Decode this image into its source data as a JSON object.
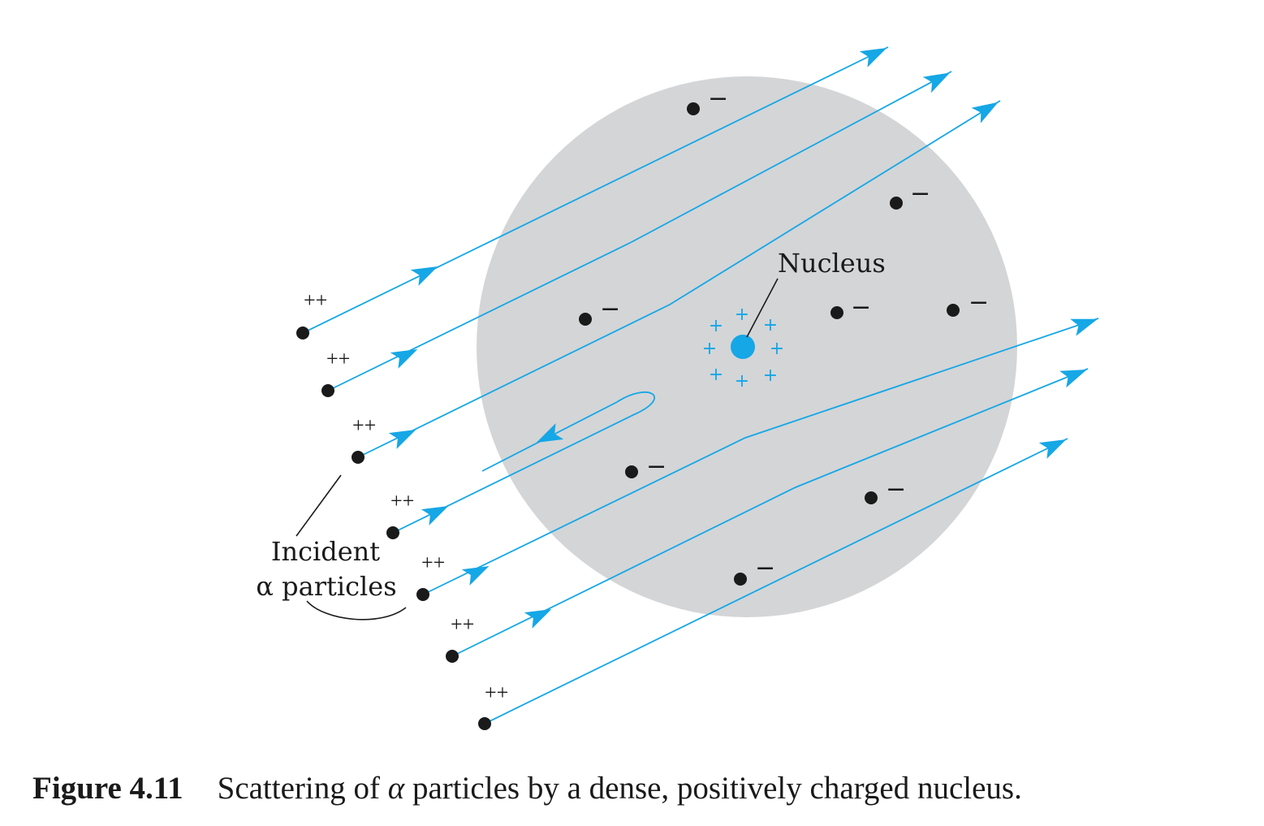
{
  "labels": {
    "nucleus": "Nucleus",
    "incident_line1": "Incident",
    "incident_line2": "α particles",
    "alpha_charge": "++",
    "electron_charge": "−",
    "nucleus_charge": "+"
  },
  "caption": {
    "figure_number": "Figure 4.11",
    "text_before": "Scattering of ",
    "alpha_symbol": "α",
    "text_after": " particles by a dense, positively charged nucleus."
  },
  "colors": {
    "atom_fill": "#d4d5d7",
    "path": "#15a7e6",
    "nucleus": "#15a7e6",
    "particle": "#1a1a1a"
  }
}
